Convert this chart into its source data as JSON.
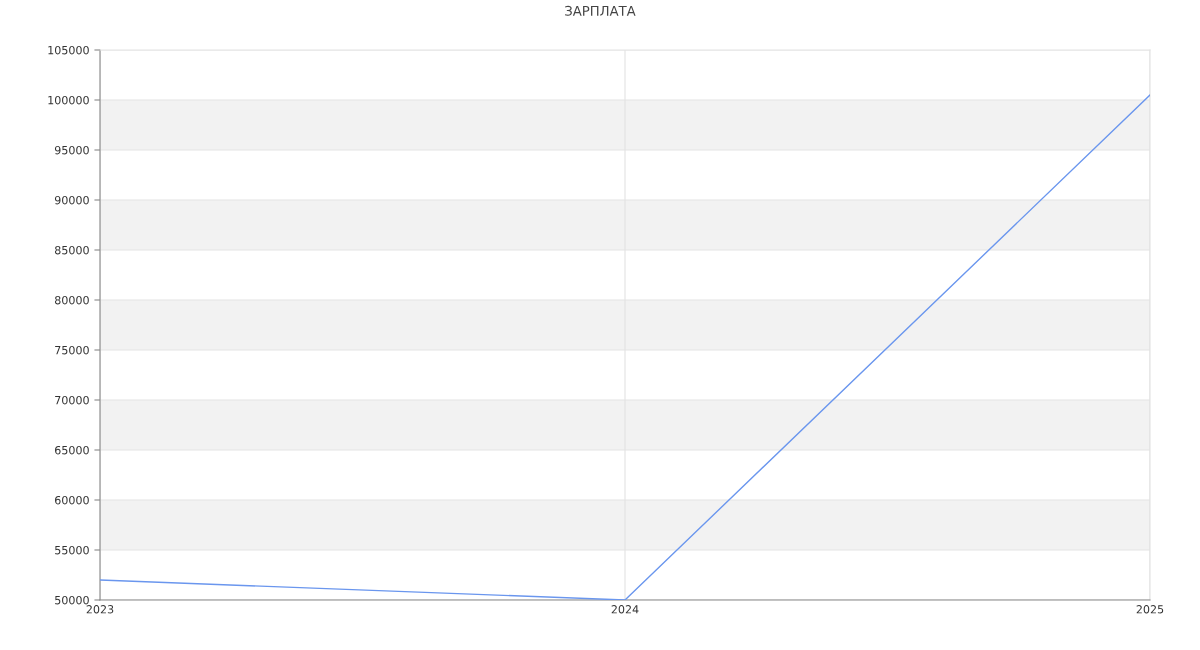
{
  "chart_data": {
    "type": "line",
    "title": "ЗАРПЛАТА",
    "x": [
      2023,
      2024,
      2025
    ],
    "series": [
      {
        "color": "#6a96ee",
        "values": [
          52000,
          50000,
          100500
        ]
      }
    ],
    "xlim": [
      2023,
      2025
    ],
    "xticks": [
      2023,
      2024,
      2025
    ],
    "ylim": [
      50000,
      105000
    ],
    "yticks": [
      50000,
      55000,
      60000,
      65000,
      70000,
      75000,
      80000,
      85000,
      90000,
      95000,
      100000,
      105000
    ],
    "bands": [
      {
        "axis": "y",
        "from": 55000,
        "to": 60000,
        "color": "#f2f2f2"
      },
      {
        "axis": "y",
        "from": 65000,
        "to": 70000,
        "color": "#f2f2f2"
      },
      {
        "axis": "y",
        "from": 75000,
        "to": 80000,
        "color": "#f2f2f2"
      },
      {
        "axis": "y",
        "from": 85000,
        "to": 90000,
        "color": "#f2f2f2"
      },
      {
        "axis": "y",
        "from": 95000,
        "to": 100000,
        "color": "#f2f2f2"
      }
    ],
    "grid": true,
    "marker": "none",
    "line_style": "solid"
  }
}
